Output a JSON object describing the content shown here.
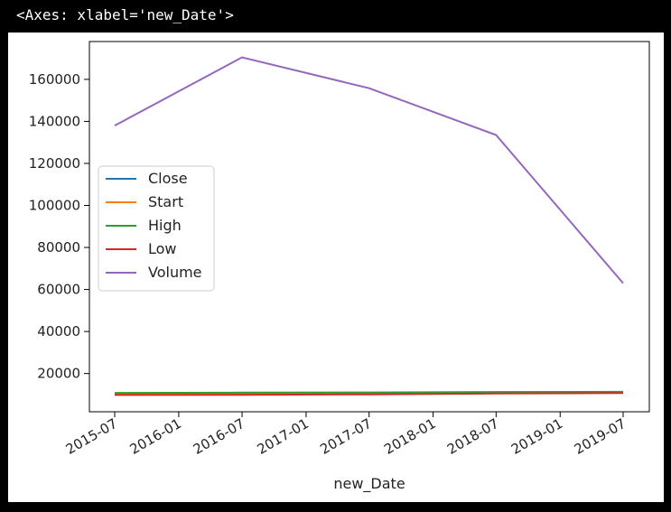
{
  "output": {
    "repr": "<Axes: xlabel='new_Date'>"
  },
  "chart_data": {
    "type": "line",
    "xlabel": "new_Date",
    "ylabel": "",
    "x": [
      "2015-07-01",
      "2016-07-01",
      "2017-07-01",
      "2018-07-01",
      "2019-07-01"
    ],
    "x_ticks": [
      "2015-07",
      "2016-01",
      "2016-07",
      "2017-01",
      "2017-07",
      "2018-01",
      "2018-07",
      "2019-01",
      "2019-07"
    ],
    "y_ticks": [
      20000,
      40000,
      60000,
      80000,
      100000,
      120000,
      140000,
      160000
    ],
    "ylim": [
      1800,
      178000
    ],
    "grid": false,
    "legend_position": "center-left",
    "series": [
      {
        "name": "Close",
        "color": "#1f77b4",
        "values": [
          10200,
          10350,
          10500,
          10800,
          11000
        ]
      },
      {
        "name": "Start",
        "color": "#ff7f0e",
        "values": [
          10100,
          10300,
          10450,
          10750,
          10950
        ]
      },
      {
        "name": "High",
        "color": "#2ca02c",
        "values": [
          10800,
          10900,
          11000,
          11200,
          11300
        ]
      },
      {
        "name": "Low",
        "color": "#d62728",
        "values": [
          9800,
          9900,
          10100,
          10500,
          10700
        ]
      },
      {
        "name": "Volume",
        "color": "#9467bd",
        "values": [
          138000,
          170500,
          155800,
          133500,
          63000
        ]
      }
    ]
  }
}
